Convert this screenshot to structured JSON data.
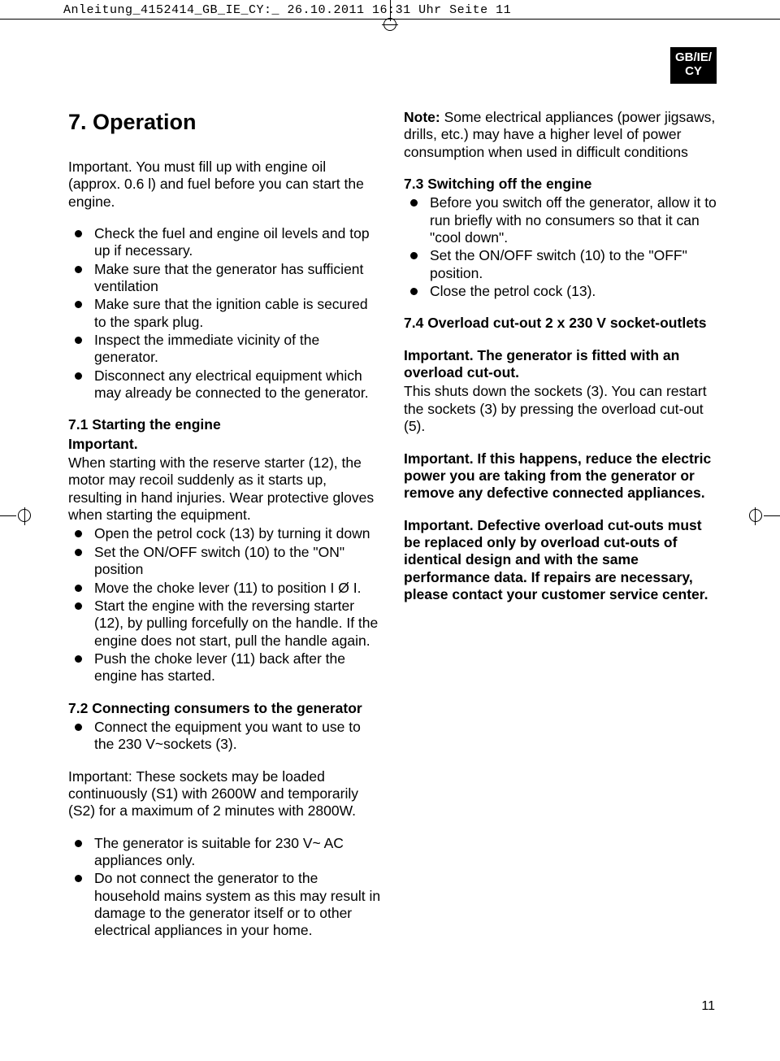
{
  "header": "Anleitung_4152414_GB_IE_CY:_  26.10.2011  16:31 Uhr  Seite 11",
  "lang_badge": {
    "line1": "GB/IE/",
    "line2": "CY"
  },
  "page_number": "11",
  "left": {
    "title": "7. Operation",
    "intro": "Important. You must fill up with engine oil (approx. 0.6 l) and fuel before you can start the engine.",
    "checks": [
      "Check the fuel and engine oil levels and top up if necessary.",
      "Make sure that the generator has sufficient ventilation",
      "Make sure that the ignition cable is secured to the spark plug.",
      "Inspect the immediate vicinity of the generator.",
      "Disconnect any electrical equipment which may already be connected to the generator."
    ],
    "s71_head": "7.1 Starting the engine",
    "s71_imp": "Important.",
    "s71_body": "When starting with the reserve starter (12), the motor may recoil suddenly as it starts up, resulting in hand injuries. Wear protective gloves when starting the equipment.",
    "s71_list": [
      "Open the petrol cock (13) by turning it down",
      "Set the ON/OFF switch (10) to the \"ON\" position",
      "Move the choke lever (11) to position I Ø I.",
      "Start the engine with the reversing starter (12), by pulling forcefully on the handle. If the engine does not start, pull the handle again.",
      "Push the choke lever (11) back after the engine has started."
    ],
    "s72_head": "7.2 Connecting consumers to the generator",
    "s72_list1": [
      "Connect the equipment you want to use to the 230 V~sockets (3)."
    ],
    "s72_imp": "Important: These sockets may be loaded continuously (S1) with 2600W and temporarily (S2) for a maximum of 2 minutes with 2800W.",
    "s72_list2": [
      "The generator is suitable for 230 V~ AC appliances only.",
      "Do not connect the generator to the household mains system as this may result in damage to the generator itself or to other electrical appliances in your home."
    ]
  },
  "right": {
    "note_label": "Note:",
    "note_body": " Some electrical appliances (power jigsaws, drills, etc.) may have a higher level of power consumption when used in difficult conditions",
    "s73_head": "7.3 Switching off the engine",
    "s73_list": [
      "Before you switch off the generator, allow it to run briefly with no consumers so that it can \"cool down\".",
      "Set the ON/OFF switch (10) to the \"OFF\" position.",
      "Close the petrol cock (13)."
    ],
    "s74_head": "7.4 Overload cut-out 2 x 230 V socket-outlets",
    "s74_p1": "Important. The generator is fitted with an overload cut-out.",
    "s74_p2": "This shuts down the sockets (3). You can restart the sockets (3) by pressing the overload cut-out (5).",
    "s74_p3": "Important. If this happens, reduce the electric power you are taking from the generator or remove any defective connected appliances.",
    "s74_p4": "Important. Defective overload cut-outs must be replaced only by overload cut-outs of identical design and with the same performance data. If repairs are necessary, please contact your customer service center."
  }
}
